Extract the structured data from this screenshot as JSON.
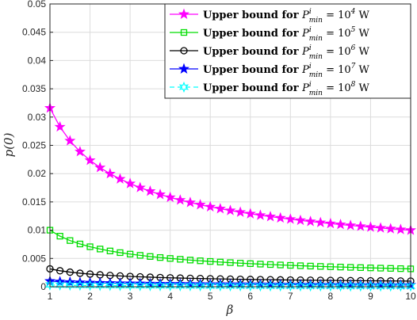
{
  "chart_data": {
    "type": "line",
    "xlabel": "β",
    "ylabel": "p(0)",
    "xlim": [
      1,
      10
    ],
    "ylim": [
      0,
      0.05
    ],
    "xticks": [
      "1",
      "2",
      "3",
      "4",
      "5",
      "6",
      "7",
      "8",
      "9",
      "10"
    ],
    "yticks": [
      "0",
      "0.005",
      "0.01",
      "0.015",
      "0.02",
      "0.025",
      "0.03",
      "0.035",
      "0.04",
      "0.045",
      "0.05"
    ],
    "grid": true,
    "legend_position": "top-right",
    "x": [
      1,
      1.25,
      1.5,
      1.75,
      2,
      2.25,
      2.5,
      2.75,
      3,
      3.25,
      3.5,
      3.75,
      4,
      4.25,
      4.5,
      4.75,
      5,
      5.25,
      5.5,
      5.75,
      6,
      6.25,
      6.5,
      6.75,
      7,
      7.25,
      7.5,
      7.75,
      8,
      8.25,
      8.5,
      8.75,
      9,
      9.25,
      9.5,
      9.75,
      10
    ],
    "series": [
      {
        "name": "Upper bound for P_min^i = 10^4 W",
        "legend_main": "Upper bound for ",
        "legend_sym": "P",
        "legend_sup": "i",
        "legend_sub": "min",
        "legend_eq": " = 10",
        "legend_exp": "4",
        "legend_unit": " W",
        "color": "#ff00ff",
        "marker": "star",
        "dash": "none",
        "c": 0.0316
      },
      {
        "name": "Upper bound for P_min^i = 10^5 W",
        "legend_main": "Upper bound for ",
        "legend_sym": "P",
        "legend_sup": "i",
        "legend_sub": "min",
        "legend_eq": " = 10",
        "legend_exp": "5",
        "legend_unit": " W",
        "color": "#00dd00",
        "marker": "square",
        "dash": "none",
        "c": 0.01
      },
      {
        "name": "Upper bound for P_min^i = 10^6 W",
        "legend_main": "Upper bound for ",
        "legend_sym": "P",
        "legend_sup": "i",
        "legend_sub": "min",
        "legend_eq": " = 10",
        "legend_exp": "6",
        "legend_unit": " W",
        "color": "#000000",
        "marker": "circle",
        "dash": "none",
        "c": 0.00316
      },
      {
        "name": "Upper bound for P_min^i = 10^7 W",
        "legend_main": "Upper bound for ",
        "legend_sym": "P",
        "legend_sup": "i",
        "legend_sub": "min",
        "legend_eq": " = 10",
        "legend_exp": "7",
        "legend_unit": " W",
        "color": "#0000ff",
        "marker": "star",
        "dash": "none",
        "c": 0.001
      },
      {
        "name": "Upper bound for P_min^i = 10^8 W",
        "legend_main": "Upper bound for ",
        "legend_sym": "P",
        "legend_sup": "i",
        "legend_sub": "min",
        "legend_eq": " = 10",
        "legend_exp": "8",
        "legend_unit": " W",
        "color": "#00ffff",
        "marker": "hexstar",
        "dash": "6,4",
        "c": 0.000316
      }
    ]
  }
}
